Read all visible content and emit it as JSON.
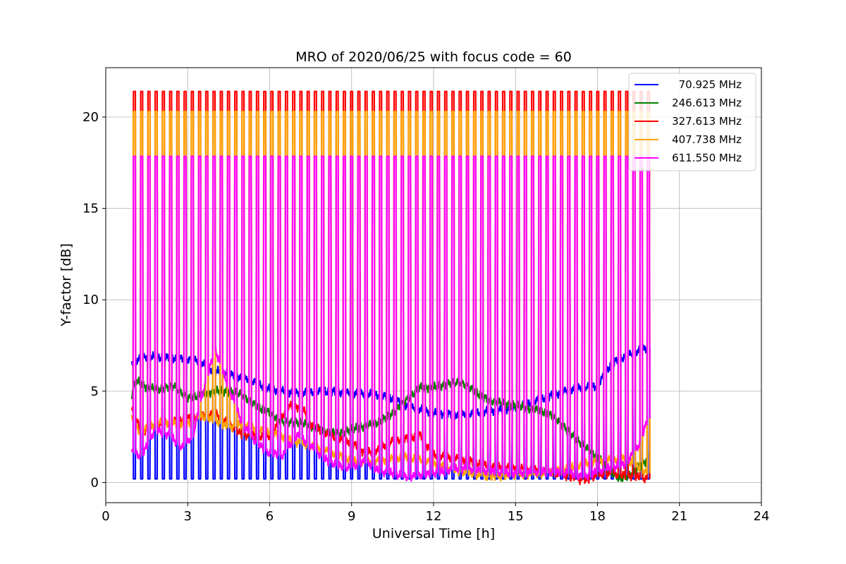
{
  "chart_data": {
    "type": "line",
    "title": "MRO of 2020/06/25 with focus code = 60",
    "xlabel": "Universal Time [h]",
    "ylabel": "Y-factor [dB]",
    "xlim": [
      0,
      24
    ],
    "ylim": [
      -1.1,
      22.7
    ],
    "xticks": [
      0,
      3,
      6,
      9,
      12,
      15,
      18,
      21,
      24
    ],
    "yticks": [
      0,
      5,
      10,
      15,
      20
    ],
    "grid": true,
    "legend": "top-right",
    "pulse": {
      "start": 0.95,
      "end": 19.85,
      "period": 0.265,
      "width": 0.1
    },
    "series": [
      {
        "name": "70.925 MHz",
        "color": "#0000ff",
        "pulse_high": 0.2,
        "baseline": [
          [
            0.95,
            6.6
          ],
          [
            1.5,
            6.9
          ],
          [
            2.5,
            6.8
          ],
          [
            3.4,
            6.7
          ],
          [
            3.8,
            6.2
          ],
          [
            4.6,
            5.9
          ],
          [
            5.3,
            5.6
          ],
          [
            6,
            5.1
          ],
          [
            7,
            4.9
          ],
          [
            8,
            5.0
          ],
          [
            9,
            4.9
          ],
          [
            10,
            4.8
          ],
          [
            10.5,
            4.6
          ],
          [
            11,
            4.2
          ],
          [
            12,
            3.8
          ],
          [
            13,
            3.7
          ],
          [
            14,
            3.9
          ],
          [
            15,
            4.1
          ],
          [
            16,
            4.6
          ],
          [
            17,
            5.1
          ],
          [
            18,
            5.3
          ],
          [
            18.5,
            6.5
          ],
          [
            19,
            6.9
          ],
          [
            19.85,
            7.4
          ]
        ]
      },
      {
        "name": "246.613 MHz",
        "color": "#008000",
        "baseline": [
          [
            0.95,
            4.8
          ],
          [
            1.1,
            5.6
          ],
          [
            1.5,
            5.2
          ],
          [
            2,
            5.1
          ],
          [
            2.5,
            5.3
          ],
          [
            3,
            4.6
          ],
          [
            3.5,
            4.8
          ],
          [
            4,
            5.0
          ],
          [
            4.5,
            5.0
          ],
          [
            5,
            4.8
          ],
          [
            5.5,
            4.2
          ],
          [
            6,
            3.8
          ],
          [
            6.5,
            3.3
          ],
          [
            7,
            3.3
          ],
          [
            7.5,
            3.1
          ],
          [
            8,
            2.8
          ],
          [
            8.5,
            2.7
          ],
          [
            9,
            2.9
          ],
          [
            9.5,
            3.1
          ],
          [
            10,
            3.3
          ],
          [
            10.5,
            3.8
          ],
          [
            11,
            4.5
          ],
          [
            11.5,
            5.2
          ],
          [
            12,
            5.2
          ],
          [
            12.5,
            5.4
          ],
          [
            13,
            5.5
          ],
          [
            13.5,
            5.0
          ],
          [
            14,
            4.5
          ],
          [
            15,
            4.2
          ],
          [
            16,
            3.9
          ],
          [
            16.5,
            3.5
          ],
          [
            17,
            2.7
          ],
          [
            17.5,
            2.0
          ],
          [
            18,
            1.4
          ],
          [
            18.5,
            0.6
          ],
          [
            18.8,
            0.2
          ],
          [
            19.3,
            0.5
          ],
          [
            19.85,
            1.3
          ]
        ]
      },
      {
        "name": "327.613 MHz",
        "color": "#ff0000",
        "pulse_high": 21.4,
        "baseline": [
          [
            0.95,
            4.0
          ],
          [
            1.3,
            2.8
          ],
          [
            2,
            3.2
          ],
          [
            3,
            3.5
          ],
          [
            4,
            3.8
          ],
          [
            5,
            2.6
          ],
          [
            6,
            2.5
          ],
          [
            6.7,
            4.2
          ],
          [
            7.2,
            4.1
          ],
          [
            7.5,
            3.2
          ],
          [
            8,
            2.7
          ],
          [
            8.5,
            2.4
          ],
          [
            9,
            2.2
          ],
          [
            9.5,
            1.6
          ],
          [
            10,
            1.8
          ],
          [
            10.5,
            2.3
          ],
          [
            11,
            2.4
          ],
          [
            11.5,
            2.6
          ],
          [
            12,
            1.5
          ],
          [
            12.5,
            1.4
          ],
          [
            13,
            1.3
          ],
          [
            14,
            0.9
          ],
          [
            15,
            0.8
          ],
          [
            16,
            0.6
          ],
          [
            16.5,
            0.5
          ],
          [
            17,
            0.3
          ],
          [
            17.5,
            0.1
          ],
          [
            18,
            0.4
          ],
          [
            18.5,
            0.5
          ],
          [
            19,
            0.4
          ],
          [
            19.85,
            0.2
          ]
        ]
      },
      {
        "name": "407.738 MHz",
        "color": "#ffa500",
        "pulse_high": 20.3,
        "baseline": [
          [
            0.95,
            3.5
          ],
          [
            1.2,
            2.8
          ],
          [
            2,
            3.3
          ],
          [
            3,
            3.2
          ],
          [
            3.5,
            3.6
          ],
          [
            4,
            3.4
          ],
          [
            4.5,
            3.0
          ],
          [
            5,
            3.2
          ],
          [
            5.5,
            2.9
          ],
          [
            6,
            2.8
          ],
          [
            7,
            2.2
          ],
          [
            8,
            1.8
          ],
          [
            8.5,
            1.5
          ],
          [
            9,
            1.2
          ],
          [
            9.5,
            1.1
          ],
          [
            10,
            1.2
          ],
          [
            11,
            1.4
          ],
          [
            12,
            1.1
          ],
          [
            12.5,
            0.8
          ],
          [
            13,
            0.6
          ],
          [
            14,
            0.3
          ],
          [
            15,
            0.4
          ],
          [
            16,
            0.5
          ],
          [
            17,
            0.8
          ],
          [
            18,
            1.2
          ],
          [
            19,
            1.3
          ],
          [
            19.85,
            0.5
          ]
        ]
      },
      {
        "name": "611.550 MHz",
        "color": "#ff00ff",
        "pulse_high": 17.85,
        "baseline": [
          [
            0.95,
            1.7
          ],
          [
            1.3,
            1.4
          ],
          [
            1.8,
            2.9
          ],
          [
            2.3,
            2.6
          ],
          [
            2.8,
            1.9
          ],
          [
            3.2,
            2.6
          ],
          [
            3.6,
            5.2
          ],
          [
            4.0,
            7.3
          ],
          [
            4.5,
            5.2
          ],
          [
            5,
            3.2
          ],
          [
            5.5,
            2.2
          ],
          [
            6,
            1.6
          ],
          [
            6.5,
            1.5
          ],
          [
            7,
            2.6
          ],
          [
            7.5,
            2.0
          ],
          [
            8,
            1.3
          ],
          [
            8.5,
            0.9
          ],
          [
            9,
            0.8
          ],
          [
            9.5,
            1.2
          ],
          [
            10,
            0.6
          ],
          [
            10.5,
            0.5
          ],
          [
            11,
            0.3
          ],
          [
            11.5,
            0.4
          ],
          [
            12,
            0.5
          ],
          [
            13,
            0.8
          ],
          [
            14,
            0.6
          ],
          [
            15,
            0.5
          ],
          [
            16,
            0.6
          ],
          [
            17,
            0.5
          ],
          [
            17.5,
            0.3
          ],
          [
            18,
            0.6
          ],
          [
            18.5,
            0.8
          ],
          [
            19,
            1.0
          ],
          [
            19.5,
            2.0
          ],
          [
            19.85,
            3.5
          ]
        ]
      }
    ]
  }
}
